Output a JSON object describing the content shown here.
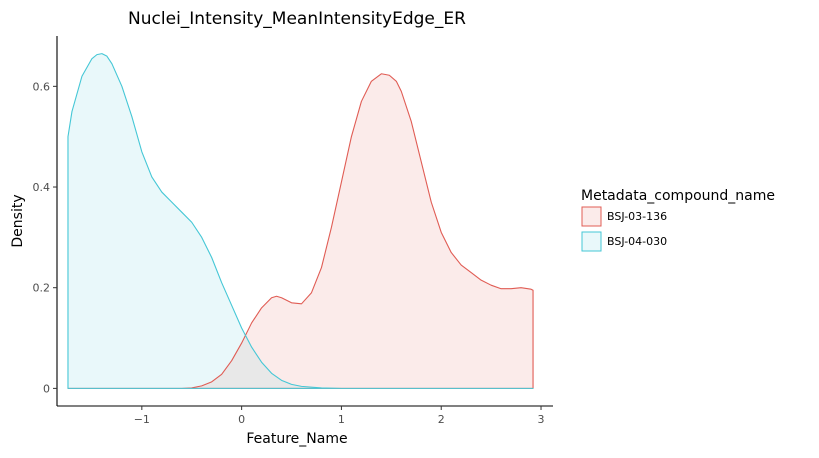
{
  "chart_data": {
    "type": "area",
    "title": "Nuclei_Intensity_MeanIntensityEdge_ER",
    "xlabel": "Feature_Name",
    "ylabel": "Density",
    "xlim": [
      -1.85,
      3.12
    ],
    "ylim": [
      -0.035,
      0.7
    ],
    "x_ticks": [
      -1,
      0,
      1,
      2,
      3
    ],
    "x_tick_labels": [
      "−1",
      "0",
      "1",
      "2",
      "3"
    ],
    "y_ticks": [
      0,
      0.2,
      0.4,
      0.6
    ],
    "y_tick_labels": [
      "0",
      "0.2",
      "0.4",
      "0.6"
    ],
    "grid": false,
    "legend": {
      "title": "Metadata_compound_name",
      "position": "right",
      "entries": [
        "BSJ-03-136",
        "BSJ-04-030"
      ]
    },
    "series": [
      {
        "name": "BSJ-03-136",
        "color": "#e05c54",
        "fill": "#fbebea",
        "x": [
          -1.74,
          -0.6,
          -0.5,
          -0.4,
          -0.3,
          -0.2,
          -0.1,
          0.0,
          0.1,
          0.2,
          0.3,
          0.35,
          0.4,
          0.5,
          0.6,
          0.7,
          0.8,
          0.9,
          1.0,
          1.1,
          1.2,
          1.3,
          1.4,
          1.48,
          1.55,
          1.6,
          1.7,
          1.8,
          1.9,
          2.0,
          2.1,
          2.2,
          2.3,
          2.4,
          2.5,
          2.6,
          2.7,
          2.8,
          2.9,
          2.92
        ],
        "y": [
          0.0,
          0.0,
          0.001,
          0.005,
          0.013,
          0.028,
          0.055,
          0.09,
          0.13,
          0.16,
          0.18,
          0.183,
          0.18,
          0.17,
          0.168,
          0.19,
          0.24,
          0.32,
          0.41,
          0.5,
          0.57,
          0.61,
          0.625,
          0.622,
          0.61,
          0.59,
          0.53,
          0.45,
          0.37,
          0.31,
          0.27,
          0.245,
          0.23,
          0.215,
          0.205,
          0.198,
          0.198,
          0.2,
          0.197,
          0.195
        ]
      },
      {
        "name": "BSJ-04-030",
        "color": "#45c7d6",
        "fill": "#e9f8fa",
        "x": [
          -1.74,
          -1.74,
          -1.7,
          -1.6,
          -1.5,
          -1.45,
          -1.4,
          -1.35,
          -1.3,
          -1.2,
          -1.1,
          -1.0,
          -0.9,
          -0.8,
          -0.7,
          -0.6,
          -0.5,
          -0.4,
          -0.3,
          -0.2,
          -0.1,
          0.0,
          0.1,
          0.2,
          0.3,
          0.4,
          0.5,
          0.6,
          0.8,
          1.0,
          1.5,
          2.0,
          2.92
        ],
        "y": [
          0.0,
          0.5,
          0.55,
          0.62,
          0.655,
          0.663,
          0.665,
          0.66,
          0.645,
          0.6,
          0.54,
          0.47,
          0.42,
          0.39,
          0.37,
          0.35,
          0.33,
          0.3,
          0.26,
          0.21,
          0.165,
          0.12,
          0.082,
          0.052,
          0.03,
          0.016,
          0.008,
          0.004,
          0.001,
          0.0,
          0.0,
          0.0,
          0.0
        ]
      }
    ],
    "overlap_fill": "#e8e8e8"
  }
}
